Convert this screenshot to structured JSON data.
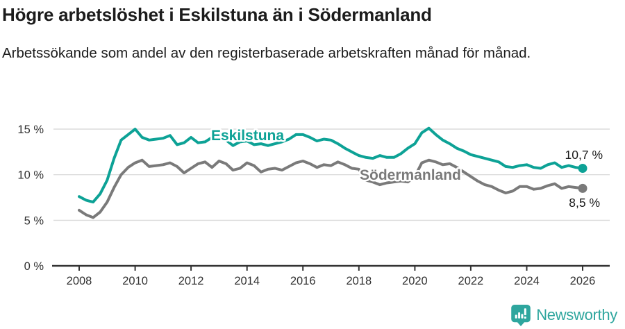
{
  "header": {
    "title": "Högre arbetslöshet i Eskilstuna än i Södermanland",
    "subtitle": "Arbetssökande som andel av den registerbaserade arbetskraften månad för månad."
  },
  "chart_data": {
    "type": "line",
    "title": "Högre arbetslöshet i Eskilstuna än i Södermanland",
    "subtitle": "Arbetssökande som andel av den registerbaserade arbetskraften månad för månad.",
    "xlabel": "",
    "ylabel": "",
    "x_unit": "year (monthly series, values sampled quarterly)",
    "x_start": 2008.0,
    "x_step": 0.25,
    "xlim": [
      2008,
      2026
    ],
    "ylim": [
      0,
      16.6
    ],
    "grid": "horizontal",
    "legend_position": "inline-labels-on-lines",
    "x_ticks": [
      2008,
      2010,
      2012,
      2014,
      2016,
      2018,
      2020,
      2022,
      2024,
      2026
    ],
    "y_ticks": [
      0,
      5,
      10,
      15
    ],
    "y_tick_labels": [
      "0 %",
      "5 %",
      "10 %",
      "15 %"
    ],
    "series": [
      {
        "name": "Södermanland",
        "color": "#7a7a7a",
        "end_label": "8,5 %",
        "end_value": 8.5,
        "values": [
          6.1,
          5.6,
          5.3,
          5.9,
          7.0,
          8.6,
          10.0,
          10.8,
          11.3,
          11.6,
          10.9,
          11.0,
          11.1,
          11.3,
          10.9,
          10.2,
          10.7,
          11.2,
          11.4,
          10.8,
          11.5,
          11.2,
          10.5,
          10.7,
          11.3,
          11.0,
          10.3,
          10.6,
          10.7,
          10.5,
          10.9,
          11.3,
          11.5,
          11.2,
          10.8,
          11.1,
          11.0,
          11.4,
          11.1,
          10.7,
          10.6,
          9.4,
          9.2,
          8.9,
          9.1,
          9.2,
          9.3,
          9.2,
          9.8,
          11.3,
          11.6,
          11.4,
          11.1,
          11.2,
          10.8,
          10.3,
          9.8,
          9.3,
          8.9,
          8.7,
          8.3,
          8.0,
          8.2,
          8.7,
          8.7,
          8.4,
          8.5,
          8.8,
          9.0,
          8.5,
          8.7,
          8.6,
          8.5
        ]
      },
      {
        "name": "Eskilstuna",
        "color": "#0da296",
        "end_label": "10,7 %",
        "end_value": 10.7,
        "values": [
          7.6,
          7.2,
          7.0,
          7.9,
          9.4,
          11.8,
          13.8,
          14.4,
          15.0,
          14.1,
          13.8,
          13.9,
          14.0,
          14.3,
          13.3,
          13.5,
          14.1,
          13.5,
          13.6,
          14.1,
          14.3,
          13.8,
          13.2,
          13.6,
          13.7,
          13.3,
          13.4,
          13.2,
          13.4,
          13.6,
          13.9,
          14.4,
          14.4,
          14.1,
          13.7,
          13.9,
          13.8,
          13.4,
          12.9,
          12.5,
          12.1,
          11.9,
          11.8,
          12.1,
          11.9,
          11.9,
          12.3,
          12.9,
          13.4,
          14.6,
          15.1,
          14.4,
          13.8,
          13.4,
          12.9,
          12.6,
          12.2,
          12.0,
          11.8,
          11.6,
          11.4,
          10.9,
          10.8,
          11.0,
          11.1,
          10.8,
          10.7,
          11.1,
          11.3,
          10.8,
          11.0,
          10.8,
          10.7
        ]
      }
    ]
  },
  "footer": {
    "brand_name": "Newsworthy"
  },
  "colors": {
    "accent_teal": "#0da296",
    "series_gray": "#7a7a7a",
    "axis": "#333333",
    "grid": "#dcdcdc",
    "text": "#1c1c1c",
    "brand": "#2ea69e"
  }
}
